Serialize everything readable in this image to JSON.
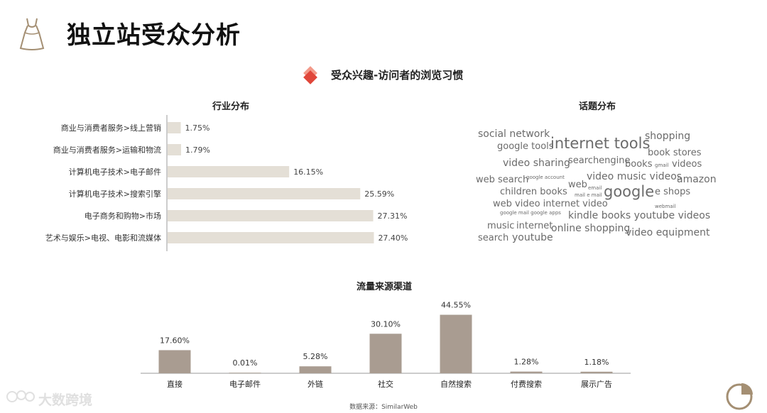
{
  "header": {
    "title": "独立站受众分析",
    "section_heading": "受众兴趣-访问者的浏览习惯",
    "icon": "dress-icon"
  },
  "industry": {
    "title": "行业分布",
    "bar_color": "#e4dfd6",
    "chart_data": {
      "type": "bar",
      "orientation": "horizontal",
      "categories": [
        "商业与消费者服务>线上营销",
        "商业与消费者服务>运输和物流",
        "计算机电子技术>电子邮件",
        "计算机电子技术>搜索引擎",
        "电子商务和购物>市场",
        "艺术与娱乐>电视、电影和流媒体"
      ],
      "values": [
        1.75,
        1.79,
        16.15,
        25.59,
        27.31,
        27.4
      ],
      "value_labels": [
        "1.75%",
        "1.79%",
        "16.15%",
        "25.59%",
        "27.31%",
        "27.40%"
      ],
      "xlim": [
        0,
        30
      ]
    }
  },
  "topics": {
    "title": "话题分布",
    "words": [
      "social network",
      "internet tools",
      "shopping",
      "google tools",
      "book stores",
      "video sharing",
      "searchengine",
      "books",
      "gmail",
      "videos",
      "web search",
      "google account",
      "video music videos",
      "amazon",
      "web",
      "email",
      "children books",
      "google",
      "e shops",
      "mail e mail",
      "web video internet video",
      "webmail",
      "google mail google apps",
      "kindle books youtube videos",
      "music",
      "internet",
      "online shopping",
      "video equipment",
      "search",
      "youtube"
    ]
  },
  "traffic": {
    "title": "流量来源渠道",
    "bar_color": "#a99c91",
    "chart_data": {
      "type": "bar",
      "categories": [
        "直接",
        "电子邮件",
        "外链",
        "社交",
        "自然搜索",
        "付费搜索",
        "展示广告"
      ],
      "values": [
        17.6,
        0.01,
        5.28,
        30.1,
        44.55,
        1.28,
        1.18
      ],
      "value_labels": [
        "17.60%",
        "0.01%",
        "5.28%",
        "30.10%",
        "44.55%",
        "1.28%",
        "1.18%"
      ],
      "ylim": [
        0,
        45
      ]
    }
  },
  "footer": {
    "watermark": "大数跨境",
    "source": "数据来源：SimilarWeb",
    "pie_icon": "pie-chart-icon"
  }
}
